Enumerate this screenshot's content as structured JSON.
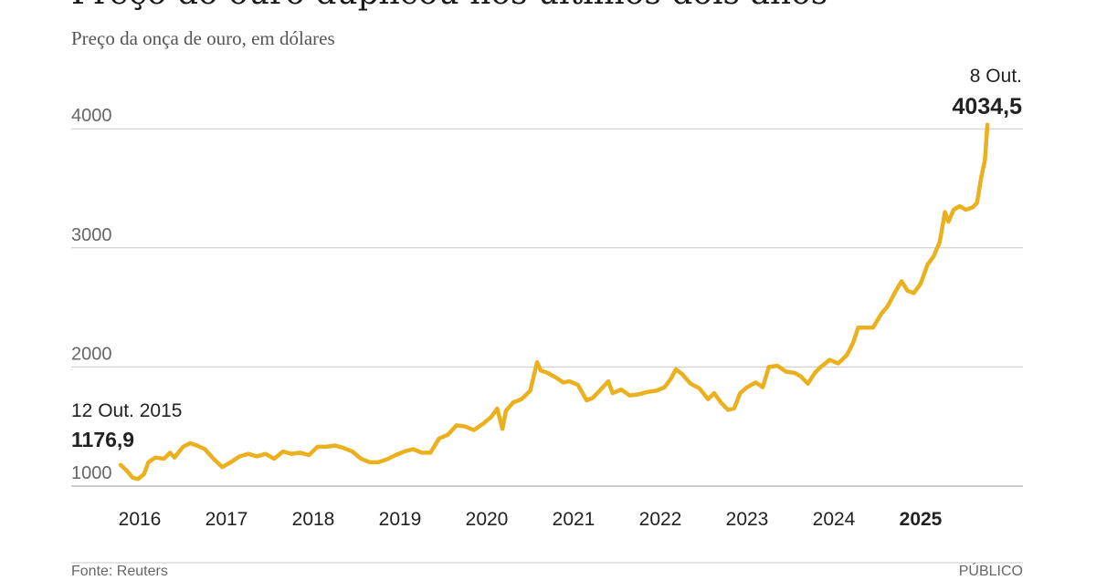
{
  "header": {
    "title": "Preço do ouro duplicou nos últimos dois anos",
    "subtitle": "Preço da onça de ouro, em dólares"
  },
  "footer": {
    "source": "Fonte: Reuters",
    "brand": "PÚBLICO"
  },
  "colors": {
    "line": "#ebb01e",
    "grid": "#c8c8c8",
    "baseline": "#999999",
    "text": "#222222",
    "muted": "#666666"
  },
  "chart_data": {
    "type": "line",
    "y_ticks": [
      1000,
      2000,
      3000,
      4000
    ],
    "y_tick_labels": [
      "1000",
      "2000",
      "3000",
      "4000"
    ],
    "ylim": [
      1000,
      4034.5
    ],
    "x_ticks": [
      2016,
      2017,
      2018,
      2019,
      2020,
      2021,
      2022,
      2023,
      2024,
      2025
    ],
    "x_tick_labels": [
      "2016",
      "2017",
      "2018",
      "2019",
      "2020",
      "2021",
      "2022",
      "2023",
      "2024",
      "2025"
    ],
    "highlight_tick": "2025",
    "grid": true,
    "annotations": [
      {
        "id": "start",
        "date_label": "12 Out. 2015",
        "value_label": "1176,9"
      },
      {
        "id": "end",
        "date_label": "8 Out.",
        "value_label": "4034,5"
      }
    ],
    "series": [
      {
        "points": [
          [
            2015.78,
            1176.9
          ],
          [
            2015.85,
            1130
          ],
          [
            2015.92,
            1070
          ],
          [
            2015.98,
            1060
          ],
          [
            2016.05,
            1100
          ],
          [
            2016.1,
            1200
          ],
          [
            2016.18,
            1240
          ],
          [
            2016.28,
            1230
          ],
          [
            2016.35,
            1280
          ],
          [
            2016.4,
            1240
          ],
          [
            2016.5,
            1330
          ],
          [
            2016.58,
            1360
          ],
          [
            2016.66,
            1340
          ],
          [
            2016.75,
            1310
          ],
          [
            2016.85,
            1230
          ],
          [
            2016.95,
            1160
          ],
          [
            2017.05,
            1200
          ],
          [
            2017.15,
            1250
          ],
          [
            2017.25,
            1270
          ],
          [
            2017.35,
            1250
          ],
          [
            2017.45,
            1270
          ],
          [
            2017.55,
            1230
          ],
          [
            2017.65,
            1290
          ],
          [
            2017.75,
            1270
          ],
          [
            2017.85,
            1280
          ],
          [
            2017.95,
            1260
          ],
          [
            2018.05,
            1330
          ],
          [
            2018.15,
            1330
          ],
          [
            2018.25,
            1340
          ],
          [
            2018.35,
            1320
          ],
          [
            2018.45,
            1290
          ],
          [
            2018.55,
            1230
          ],
          [
            2018.65,
            1200
          ],
          [
            2018.75,
            1200
          ],
          [
            2018.85,
            1225
          ],
          [
            2018.95,
            1260
          ],
          [
            2019.05,
            1290
          ],
          [
            2019.15,
            1310
          ],
          [
            2019.25,
            1280
          ],
          [
            2019.35,
            1280
          ],
          [
            2019.45,
            1400
          ],
          [
            2019.55,
            1430
          ],
          [
            2019.65,
            1510
          ],
          [
            2019.75,
            1500
          ],
          [
            2019.85,
            1470
          ],
          [
            2019.95,
            1520
          ],
          [
            2020.05,
            1580
          ],
          [
            2020.12,
            1650
          ],
          [
            2020.18,
            1480
          ],
          [
            2020.22,
            1630
          ],
          [
            2020.3,
            1700
          ],
          [
            2020.4,
            1730
          ],
          [
            2020.5,
            1800
          ],
          [
            2020.58,
            2040
          ],
          [
            2020.62,
            1970
          ],
          [
            2020.7,
            1950
          ],
          [
            2020.8,
            1910
          ],
          [
            2020.88,
            1870
          ],
          [
            2020.95,
            1880
          ],
          [
            2021.05,
            1850
          ],
          [
            2021.15,
            1720
          ],
          [
            2021.22,
            1740
          ],
          [
            2021.3,
            1800
          ],
          [
            2021.4,
            1880
          ],
          [
            2021.45,
            1780
          ],
          [
            2021.55,
            1810
          ],
          [
            2021.65,
            1760
          ],
          [
            2021.75,
            1770
          ],
          [
            2021.85,
            1790
          ],
          [
            2021.95,
            1800
          ],
          [
            2022.05,
            1830
          ],
          [
            2022.12,
            1900
          ],
          [
            2022.18,
            1980
          ],
          [
            2022.25,
            1940
          ],
          [
            2022.35,
            1860
          ],
          [
            2022.45,
            1820
          ],
          [
            2022.55,
            1730
          ],
          [
            2022.62,
            1780
          ],
          [
            2022.7,
            1700
          ],
          [
            2022.78,
            1640
          ],
          [
            2022.85,
            1650
          ],
          [
            2022.92,
            1780
          ],
          [
            2023.0,
            1830
          ],
          [
            2023.1,
            1870
          ],
          [
            2023.18,
            1830
          ],
          [
            2023.25,
            2000
          ],
          [
            2023.35,
            2010
          ],
          [
            2023.45,
            1960
          ],
          [
            2023.55,
            1950
          ],
          [
            2023.62,
            1920
          ],
          [
            2023.7,
            1860
          ],
          [
            2023.78,
            1950
          ],
          [
            2023.85,
            2000
          ],
          [
            2023.95,
            2060
          ],
          [
            2024.05,
            2030
          ],
          [
            2024.15,
            2100
          ],
          [
            2024.22,
            2200
          ],
          [
            2024.28,
            2330
          ],
          [
            2024.35,
            2330
          ],
          [
            2024.45,
            2330
          ],
          [
            2024.55,
            2450
          ],
          [
            2024.62,
            2510
          ],
          [
            2024.7,
            2620
          ],
          [
            2024.78,
            2720
          ],
          [
            2024.85,
            2640
          ],
          [
            2024.92,
            2620
          ],
          [
            2025.0,
            2700
          ],
          [
            2025.08,
            2860
          ],
          [
            2025.15,
            2930
          ],
          [
            2025.22,
            3050
          ],
          [
            2025.28,
            3300
          ],
          [
            2025.32,
            3220
          ],
          [
            2025.38,
            3320
          ],
          [
            2025.45,
            3350
          ],
          [
            2025.52,
            3320
          ],
          [
            2025.6,
            3340
          ],
          [
            2025.65,
            3380
          ],
          [
            2025.7,
            3600
          ],
          [
            2025.74,
            3730
          ],
          [
            2025.77,
            4034.5
          ]
        ]
      }
    ]
  }
}
